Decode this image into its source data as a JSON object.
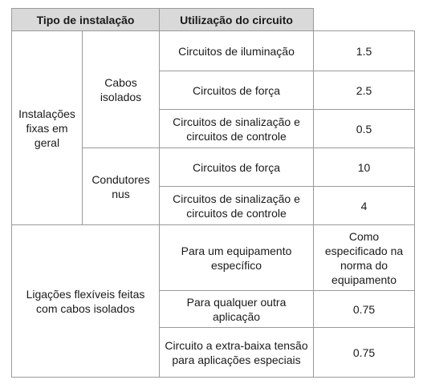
{
  "table": {
    "header": [
      "Tipo de instalação",
      "Utilização do circuito"
    ],
    "groups": [
      {
        "label": "Instalações fixas em geral",
        "subgroups": [
          {
            "label": "Cabos isolados",
            "rows": [
              [
                "Circuitos de iluminação",
                "1.5"
              ],
              [
                "Circuitos de força",
                "2.5"
              ],
              [
                "Circuitos de sinalização e circuitos de controle",
                "0.5"
              ]
            ]
          },
          {
            "label": "Condutores nus",
            "rows": [
              [
                "Circuitos de força",
                "10"
              ],
              [
                "Circuitos de sinalização e circuitos de controle",
                "4"
              ]
            ]
          }
        ]
      },
      {
        "label": "Ligações flexíveis feitas com cabos isolados",
        "rows": [
          [
            "Para um equipamento específico",
            "Como especificado na norma do equipamento"
          ],
          [
            "Para qualquer outra aplicação",
            "0.75"
          ],
          [
            "Circuito a extra-baixa tensão para aplicações especiais",
            "0.75"
          ]
        ]
      }
    ]
  }
}
